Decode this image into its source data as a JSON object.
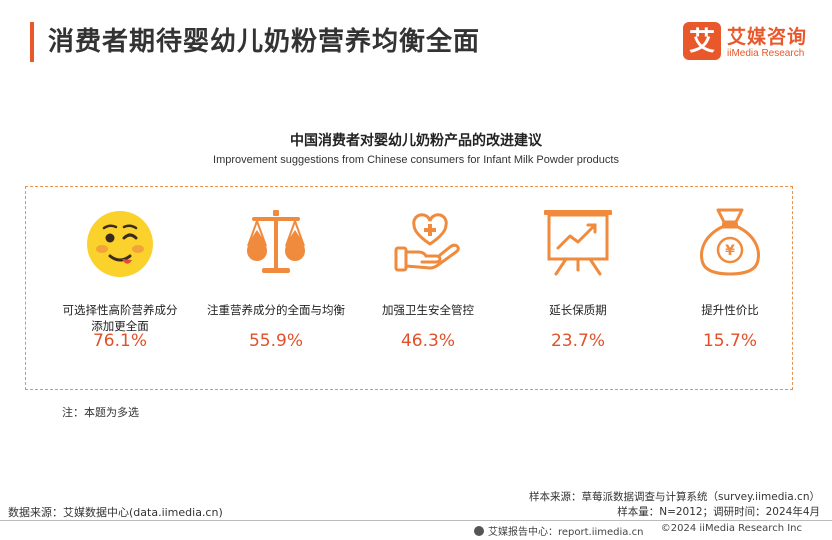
{
  "header": {
    "title": "消费者期待婴幼儿奶粉营养均衡全面",
    "accent_color": "#e8582a"
  },
  "logo": {
    "glyph": "艾",
    "name_cn": "艾媒咨询",
    "name_en": "iiMedia Research"
  },
  "chart_data": {
    "type": "table",
    "title": "中国消费者对婴幼儿奶粉产品的改进建议",
    "subtitle": "Improvement suggestions from Chinese consumers for Infant Milk Powder products",
    "categories": [
      "可选择性高阶营养成分添加更全面",
      "注重营养成分的全面与均衡",
      "加强卫生安全管控",
      "延长保质期",
      "提升性价比"
    ],
    "values": [
      76.1,
      55.9,
      46.3,
      23.7,
      15.7
    ],
    "unit": "%",
    "icons": [
      "smiley-face-icon",
      "balance-scale-icon",
      "heart-hand-icon",
      "chart-board-icon",
      "money-bag-icon"
    ],
    "value_color": "#e0512a"
  },
  "items": [
    {
      "label_line1": "可选择性高阶营养成分",
      "label_line2": "添加更全面",
      "value": "76.1%"
    },
    {
      "label_line1": "注重营养成分的全面与均衡",
      "label_line2": "",
      "value": "55.9%"
    },
    {
      "label_line1": "加强卫生安全管控",
      "label_line2": "",
      "value": "46.3%"
    },
    {
      "label_line1": "延长保质期",
      "label_line2": "",
      "value": "23.7%"
    },
    {
      "label_line1": "提升性价比",
      "label_line2": "",
      "value": "15.7%"
    }
  ],
  "note": "注：本题为多选",
  "source": {
    "sample_source": "样本来源：草莓派数据调查与计算系统（survey.iimedia.cn）",
    "sample_info": "样本量：N=2012；调研时间：2024年4月",
    "data_source": "数据来源：艾媒数据中心(data.iimedia.cn)"
  },
  "footer": {
    "report_center": "艾媒报告中心：report.iimedia.cn",
    "copyright": "©2024  iiMedia Research  Inc"
  }
}
